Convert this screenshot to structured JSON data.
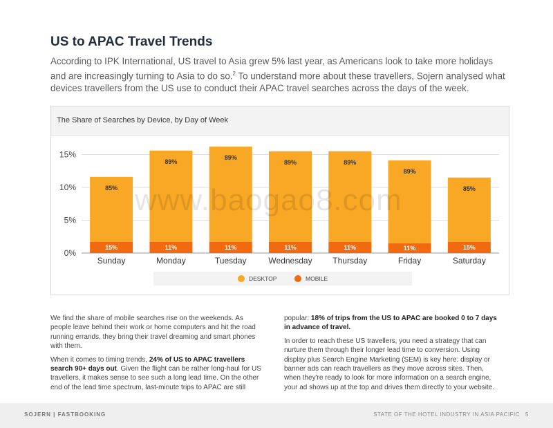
{
  "page": {
    "title": "US to APAC Travel Trends",
    "intro_a": "According to IPK International, US travel to Asia grew 5% last year, as Americans look to take more holidays and are increasingly turning to Asia to do so.",
    "intro_sup": "2",
    "intro_b": " To understand more about these travellers, Sojern analysed what devices travellers from the US use to conduct their APAC travel searches across the days of the week."
  },
  "chart_data": {
    "type": "bar",
    "stacked": true,
    "title": "The Share of Searches by Device, by Day of Week",
    "categories": [
      "Sunday",
      "Monday",
      "Tuesday",
      "Wednesday",
      "Thursday",
      "Friday",
      "Saturday"
    ],
    "series": [
      {
        "name": "MOBILE",
        "color": "#f26a0f",
        "values": [
          1.7,
          1.7,
          1.7,
          1.7,
          1.7,
          1.5,
          1.7
        ],
        "labels": [
          "15%",
          "11%",
          "11%",
          "11%",
          "11%",
          "11%",
          "15%"
        ]
      },
      {
        "name": "DESKTOP",
        "color": "#f9a825",
        "values": [
          9.9,
          13.9,
          14.5,
          13.8,
          13.8,
          12.6,
          9.8
        ],
        "labels": [
          "85%",
          "89%",
          "89%",
          "89%",
          "89%",
          "89%",
          "85%"
        ]
      }
    ],
    "yticks": [
      "0%",
      "5%",
      "10%",
      "15%"
    ],
    "ytick_values": [
      0,
      5,
      10,
      15
    ],
    "ylim": [
      0,
      16
    ],
    "legend": [
      {
        "name": "DESKTOP",
        "color": "#f9a825"
      },
      {
        "name": "MOBILE",
        "color": "#f26a0f"
      }
    ],
    "legend_position": "bottom"
  },
  "body": {
    "left_p1": "We find the share of mobile searches rise on the weekends. As people leave behind their work or home computers and hit the road running errands, they bring their travel dreaming and smart phones with them.",
    "left_p2_a": "When it comes to timing trends, ",
    "left_p2_bold": "24% of US to APAC travellers search 90+ days out",
    "left_p2_b": ". Given the flight can be rather long-haul for US travellers, it makes sense to see such a long lead time. On the other end of the lead time spectrum, last-minute trips to APAC are still",
    "right_p1_a": "popular: ",
    "right_p1_bold": "18% of trips from the US to APAC are booked 0 to 7 days in advance of travel.",
    "right_p2": "In order to reach these US travellers, you need a strategy that can nurture them through their longer lead time to conversion. Using display plus Search Engine Marketing (SEM) is key here: display or banner ads can reach travellers as they move across sites. Then, when they're ready to look for more information on a search engine, your ad shows up at the top and drives them directly to your website."
  },
  "footer": {
    "left": "SOJERN | FASTBOOKING",
    "right": "STATE OF THE HOTEL INDUSTRY IN ASIA PACIFIC",
    "page_number": "5"
  },
  "watermark": "www.baogao8.com"
}
